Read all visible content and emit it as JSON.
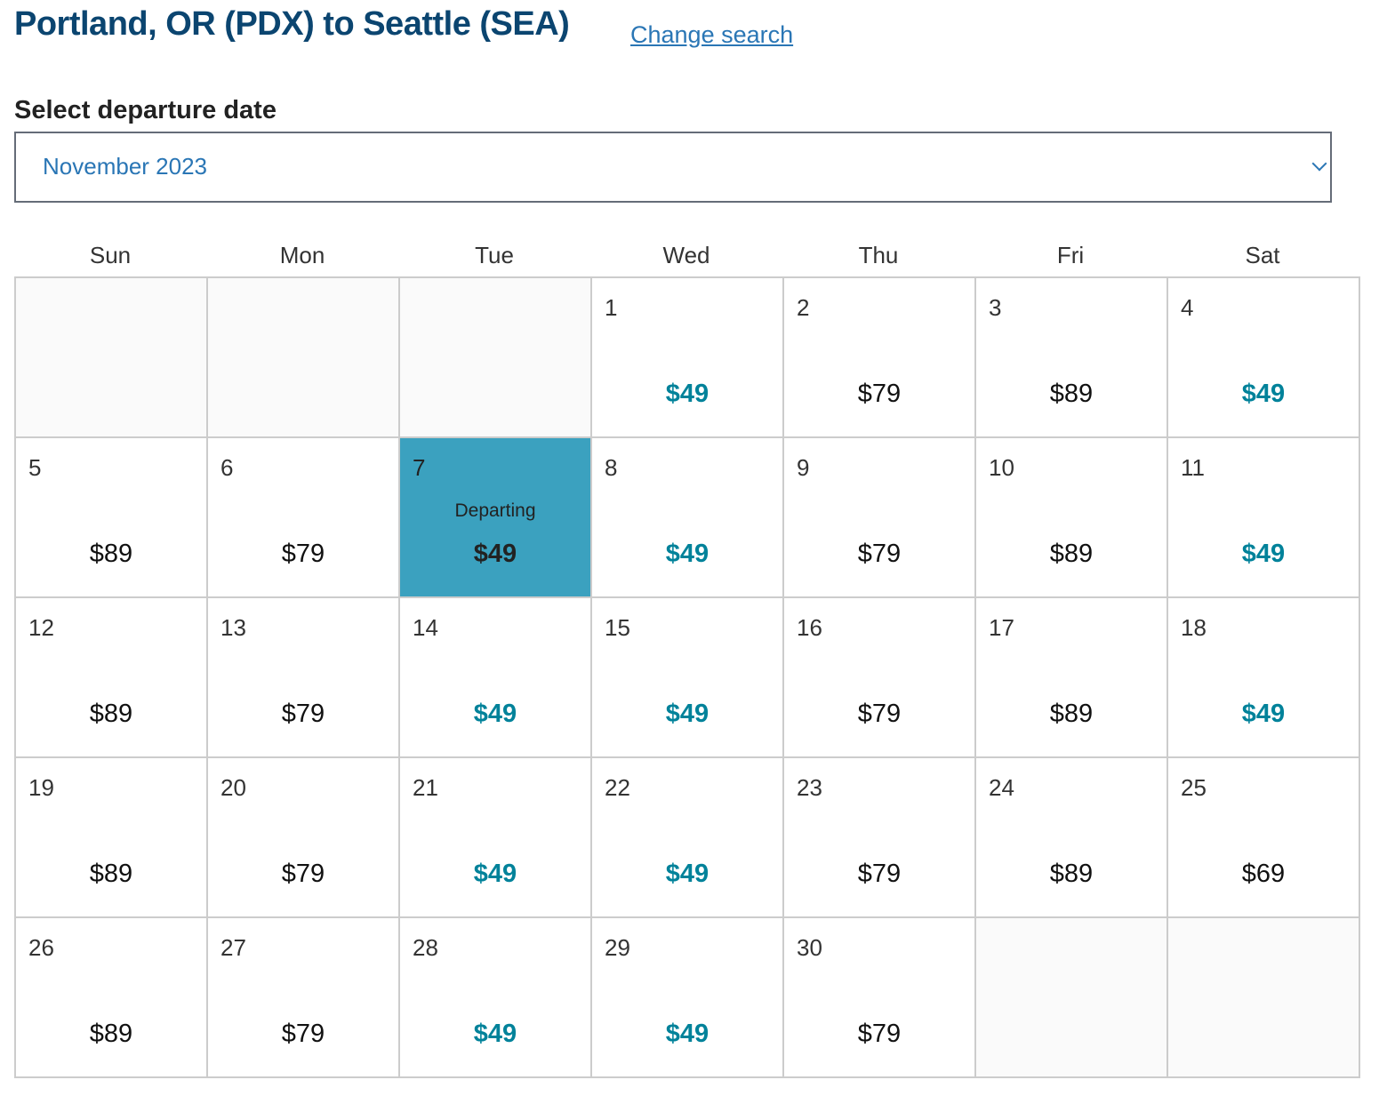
{
  "header": {
    "title": "Portland, OR (PDX) to Seattle (SEA)",
    "change_search": "Change search"
  },
  "date_select": {
    "label": "Select departure date",
    "value": "November 2023"
  },
  "calendar": {
    "weekdays": [
      "Sun",
      "Mon",
      "Tue",
      "Wed",
      "Thu",
      "Fri",
      "Sat"
    ],
    "leading_blanks": 3,
    "trailing_blanks": 2,
    "selected_label": "Departing",
    "colors": {
      "low_fare": "#00829a",
      "selected_bg": "#3ba1bf"
    },
    "days": [
      {
        "day": "1",
        "price": "$49",
        "low": true
      },
      {
        "day": "2",
        "price": "$79"
      },
      {
        "day": "3",
        "price": "$89"
      },
      {
        "day": "4",
        "price": "$49",
        "low": true
      },
      {
        "day": "5",
        "price": "$89"
      },
      {
        "day": "6",
        "price": "$79"
      },
      {
        "day": "7",
        "price": "$49",
        "low": true,
        "selected": true
      },
      {
        "day": "8",
        "price": "$49",
        "low": true
      },
      {
        "day": "9",
        "price": "$79"
      },
      {
        "day": "10",
        "price": "$89"
      },
      {
        "day": "11",
        "price": "$49",
        "low": true
      },
      {
        "day": "12",
        "price": "$89"
      },
      {
        "day": "13",
        "price": "$79"
      },
      {
        "day": "14",
        "price": "$49",
        "low": true
      },
      {
        "day": "15",
        "price": "$49",
        "low": true
      },
      {
        "day": "16",
        "price": "$79"
      },
      {
        "day": "17",
        "price": "$89"
      },
      {
        "day": "18",
        "price": "$49",
        "low": true
      },
      {
        "day": "19",
        "price": "$89"
      },
      {
        "day": "20",
        "price": "$79"
      },
      {
        "day": "21",
        "price": "$49",
        "low": true
      },
      {
        "day": "22",
        "price": "$49",
        "low": true
      },
      {
        "day": "23",
        "price": "$79"
      },
      {
        "day": "24",
        "price": "$89"
      },
      {
        "day": "25",
        "price": "$69"
      },
      {
        "day": "26",
        "price": "$89"
      },
      {
        "day": "27",
        "price": "$79"
      },
      {
        "day": "28",
        "price": "$49",
        "low": true
      },
      {
        "day": "29",
        "price": "$49",
        "low": true
      },
      {
        "day": "30",
        "price": "$79"
      }
    ]
  }
}
